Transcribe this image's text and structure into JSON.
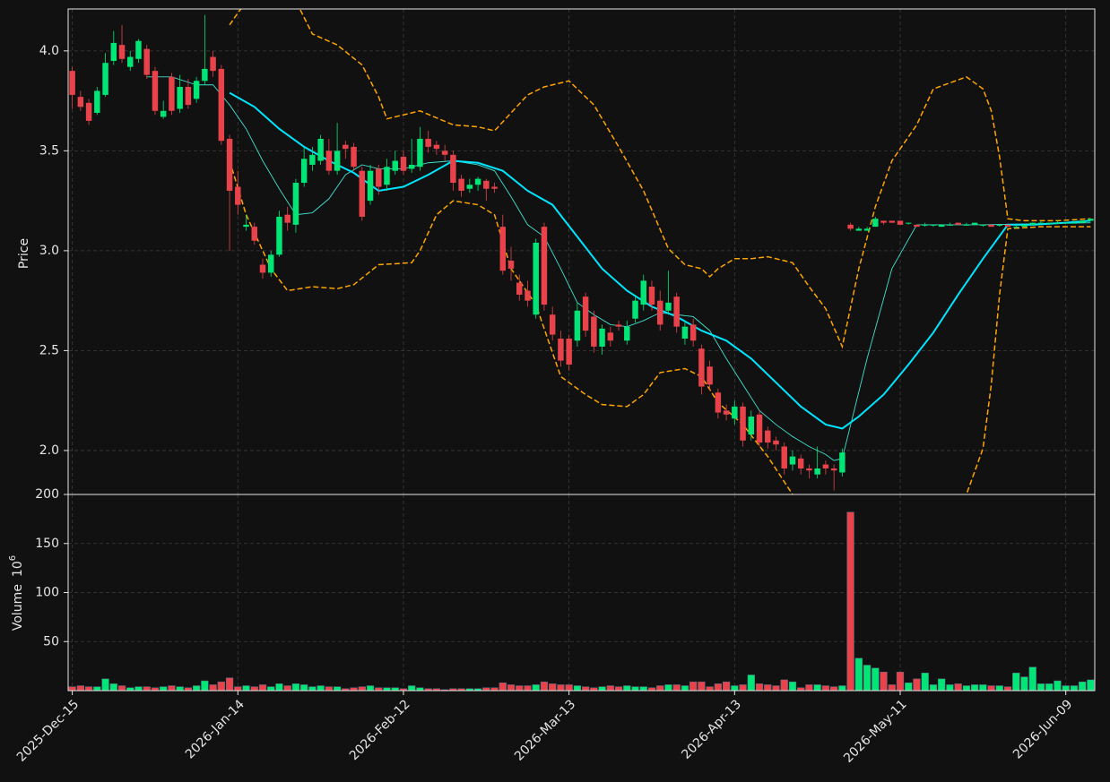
{
  "chart_data": [
    {
      "type": "candlestick",
      "ylabel": "Price",
      "up_color": "#00e676",
      "down_color": "#e8434a",
      "grid": true,
      "xlim": [
        -0.5,
        123.5
      ],
      "ylim": [
        1.78,
        4.21
      ],
      "yticks": [
        {
          "value": 2,
          "label": "2.0"
        },
        2.5,
        {
          "value": 3,
          "label": "3.0"
        },
        3.5,
        {
          "value": 4,
          "label": "4.0"
        }
      ],
      "open": [
        3.9,
        3.77,
        3.74,
        3.69,
        3.78,
        3.95,
        4.03,
        3.92,
        3.96,
        4.01,
        3.9,
        3.67,
        3.87,
        3.71,
        3.82,
        3.76,
        3.85,
        3.97,
        3.91,
        3.56,
        3.32,
        3.12,
        3.12,
        2.93,
        2.89,
        2.98,
        3.18,
        3.13,
        3.34,
        3.43,
        3.45,
        3.5,
        3.4,
        3.53,
        3.52,
        3.4,
        3.25,
        3.41,
        3.33,
        3.4,
        3.47,
        3.41,
        3.42,
        3.56,
        3.53,
        3.5,
        3.48,
        3.36,
        3.31,
        3.33,
        3.35,
        3.32,
        3.12,
        2.95,
        2.84,
        2.8,
        2.68,
        3.12,
        2.68,
        2.56,
        2.56,
        2.55,
        2.77,
        2.67,
        2.52,
        2.59,
        2.63,
        2.55,
        2.66,
        2.73,
        2.82,
        2.75,
        2.7,
        2.77,
        2.56,
        2.63,
        2.51,
        2.42,
        2.29,
        2.2,
        2.16,
        2.22,
        2.08,
        2.18,
        2.1,
        2.05,
        2.02,
        1.93,
        1.96,
        1.91,
        1.88,
        1.93,
        1.91,
        1.89,
        3.13,
        3.1,
        3.1,
        3.12,
        3.15,
        3.15,
        3.15,
        3.14,
        3.13,
        3.13,
        3.13,
        3.12,
        3.13,
        3.14,
        3.13,
        3.13,
        3.13,
        3.13,
        3.13,
        3.13,
        3.12,
        3.12,
        3.13,
        3.14,
        3.14,
        3.14,
        3.14,
        3.14,
        3.14,
        3.15
      ],
      "high": [
        3.92,
        3.8,
        3.76,
        3.82,
        3.99,
        4.1,
        4.13,
        4.0,
        4.06,
        4.03,
        3.92,
        3.75,
        3.89,
        3.88,
        3.86,
        3.87,
        4.18,
        4.0,
        3.93,
        3.58,
        3.4,
        3.18,
        3.14,
        2.96,
        3.0,
        3.2,
        3.22,
        3.36,
        3.52,
        3.52,
        3.58,
        3.56,
        3.64,
        3.55,
        3.54,
        3.42,
        3.43,
        3.43,
        3.46,
        3.5,
        3.5,
        3.56,
        3.62,
        3.6,
        3.55,
        3.53,
        3.5,
        3.38,
        3.36,
        3.37,
        3.36,
        3.34,
        3.18,
        3.02,
        2.88,
        2.85,
        3.06,
        3.14,
        2.72,
        2.6,
        2.58,
        2.74,
        2.79,
        2.7,
        2.63,
        2.62,
        2.65,
        2.65,
        2.78,
        2.88,
        2.85,
        2.8,
        2.9,
        2.79,
        2.65,
        2.66,
        2.53,
        2.45,
        2.31,
        2.23,
        2.25,
        2.24,
        2.2,
        2.2,
        2.12,
        2.07,
        2.04,
        2.0,
        1.98,
        1.93,
        2.02,
        1.95,
        1.93,
        2.01,
        3.14,
        3.12,
        3.12,
        3.17,
        3.15,
        3.15,
        3.15,
        3.14,
        3.13,
        3.14,
        3.13,
        3.13,
        3.14,
        3.14,
        3.14,
        3.14,
        3.13,
        3.13,
        3.13,
        3.13,
        3.13,
        3.13,
        3.14,
        3.15,
        3.14,
        3.15,
        3.14,
        3.15,
        3.15,
        3.16
      ],
      "low": [
        3.71,
        3.7,
        3.63,
        3.68,
        3.77,
        3.93,
        3.94,
        3.9,
        3.94,
        3.86,
        3.68,
        3.66,
        3.68,
        3.69,
        3.71,
        3.74,
        3.83,
        3.87,
        3.53,
        3.0,
        3.18,
        3.1,
        3.03,
        2.86,
        2.87,
        2.97,
        3.1,
        3.09,
        3.32,
        3.4,
        3.43,
        3.38,
        3.38,
        3.46,
        3.4,
        3.15,
        3.23,
        3.28,
        3.3,
        3.38,
        3.38,
        3.39,
        3.4,
        3.49,
        3.48,
        3.45,
        3.3,
        3.27,
        3.29,
        3.3,
        3.25,
        3.29,
        2.88,
        2.85,
        2.75,
        2.72,
        2.66,
        2.7,
        2.55,
        2.42,
        2.4,
        2.52,
        2.57,
        2.49,
        2.48,
        2.52,
        2.6,
        2.53,
        2.64,
        2.7,
        2.7,
        2.6,
        2.68,
        2.59,
        2.53,
        2.52,
        2.28,
        2.3,
        2.16,
        2.15,
        2.13,
        2.02,
        2.05,
        2.02,
        2.01,
        2.0,
        1.88,
        1.9,
        1.88,
        1.86,
        1.86,
        1.88,
        1.8,
        1.87,
        3.1,
        3.1,
        3.1,
        3.12,
        3.13,
        3.14,
        3.13,
        3.13,
        3.12,
        3.12,
        3.12,
        3.12,
        3.13,
        3.13,
        3.13,
        3.13,
        3.12,
        3.12,
        3.12,
        3.12,
        3.11,
        3.12,
        3.13,
        3.14,
        3.13,
        3.14,
        3.14,
        3.14,
        3.14,
        3.15
      ],
      "close": [
        3.78,
        3.72,
        3.65,
        3.8,
        3.94,
        4.04,
        3.96,
        3.97,
        4.05,
        3.88,
        3.7,
        3.7,
        3.7,
        3.82,
        3.73,
        3.85,
        3.91,
        3.9,
        3.55,
        3.3,
        3.23,
        3.13,
        3.05,
        2.89,
        2.98,
        3.17,
        3.14,
        3.34,
        3.46,
        3.48,
        3.56,
        3.4,
        3.5,
        3.51,
        3.42,
        3.17,
        3.4,
        3.32,
        3.42,
        3.45,
        3.4,
        3.43,
        3.56,
        3.52,
        3.51,
        3.48,
        3.34,
        3.3,
        3.33,
        3.36,
        3.31,
        3.31,
        2.9,
        2.91,
        2.78,
        2.75,
        3.04,
        2.73,
        2.58,
        2.45,
        2.43,
        2.7,
        2.6,
        2.52,
        2.61,
        2.55,
        2.62,
        2.62,
        2.75,
        2.85,
        2.73,
        2.63,
        2.74,
        2.62,
        2.62,
        2.55,
        2.32,
        2.33,
        2.19,
        2.18,
        2.22,
        2.05,
        2.17,
        2.04,
        2.04,
        2.03,
        1.91,
        1.97,
        1.91,
        1.9,
        1.91,
        1.91,
        1.9,
        1.99,
        3.11,
        3.11,
        3.11,
        3.16,
        3.14,
        3.14,
        3.13,
        3.14,
        3.12,
        3.13,
        3.13,
        3.13,
        3.13,
        3.13,
        3.13,
        3.14,
        3.13,
        3.12,
        3.13,
        3.12,
        3.12,
        3.13,
        3.14,
        3.14,
        3.14,
        3.14,
        3.14,
        3.14,
        3.15,
        3.16
      ],
      "overlays": [
        {
          "color": "#ffa500",
          "linestyle": "dashed",
          "x": [
            19,
            20,
            22,
            25,
            27,
            29,
            32,
            35,
            37,
            38,
            42,
            46,
            49,
            51,
            53,
            55,
            57,
            60,
            63,
            66,
            69,
            72,
            74,
            76,
            77,
            78,
            80,
            82,
            84,
            87,
            89,
            91,
            93,
            95,
            97,
            99,
            102,
            104,
            108,
            110,
            111,
            112,
            113,
            115,
            119,
            123
          ],
          "values": [
            4.13,
            4.19,
            4.3,
            4.35,
            4.25,
            4.085,
            4.03,
            3.93,
            3.77,
            3.66,
            3.7,
            3.63,
            3.62,
            3.6,
            3.69,
            3.78,
            3.82,
            3.85,
            3.73,
            3.52,
            3.3,
            3.01,
            2.93,
            2.91,
            2.87,
            2.91,
            2.96,
            2.96,
            2.97,
            2.94,
            2.82,
            2.71,
            2.52,
            2.91,
            3.22,
            3.45,
            3.63,
            3.81,
            3.87,
            3.81,
            3.7,
            3.47,
            3.16,
            3.15,
            3.15,
            3.16
          ]
        },
        {
          "color": "#ffa500",
          "linestyle": "dashed",
          "x": [
            19,
            21,
            24,
            26,
            29,
            32,
            34,
            37,
            41,
            42,
            44,
            46,
            49,
            51,
            53,
            56,
            59,
            62,
            64,
            67,
            69,
            71,
            74,
            76,
            78,
            81,
            84,
            87,
            89,
            91,
            93,
            96,
            100,
            104,
            107,
            108,
            110,
            111,
            112,
            113,
            117,
            123
          ],
          "values": [
            3.45,
            3.18,
            2.91,
            2.8,
            2.82,
            2.81,
            2.83,
            2.93,
            2.94,
            3.0,
            3.18,
            3.25,
            3.23,
            3.18,
            2.91,
            2.73,
            2.37,
            2.28,
            2.23,
            2.22,
            2.28,
            2.39,
            2.41,
            2.37,
            2.24,
            2.13,
            1.97,
            1.78,
            1.6,
            1.6,
            1.7,
            1.33,
            1.21,
            1.37,
            1.69,
            1.78,
            2.01,
            2.33,
            2.78,
            3.11,
            3.12,
            3.12
          ]
        },
        {
          "color": "#40e0d0",
          "linestyle": "thin",
          "x": [
            9,
            12,
            15,
            17,
            19,
            21,
            23,
            25,
            27,
            29,
            31,
            33,
            35,
            37,
            40,
            43,
            46,
            49,
            51,
            53,
            55,
            57,
            59,
            61,
            63,
            65,
            67,
            69,
            71,
            73,
            75,
            77,
            79,
            81,
            83,
            85,
            87,
            89,
            91,
            92,
            93,
            96,
            99,
            102,
            110,
            123
          ],
          "values": [
            3.87,
            3.87,
            3.83,
            3.83,
            3.73,
            3.61,
            3.45,
            3.31,
            3.18,
            3.19,
            3.26,
            3.38,
            3.43,
            3.41,
            3.41,
            3.44,
            3.45,
            3.43,
            3.4,
            3.27,
            3.13,
            3.07,
            2.91,
            2.74,
            2.68,
            2.63,
            2.62,
            2.65,
            2.69,
            2.68,
            2.67,
            2.6,
            2.46,
            2.33,
            2.2,
            2.13,
            2.07,
            2.02,
            1.98,
            1.95,
            1.96,
            2.46,
            2.91,
            3.13,
            3.13,
            3.14
          ]
        },
        {
          "color": "#00e5ff",
          "linestyle": "thick",
          "x": [
            19,
            22,
            25,
            28,
            31,
            34,
            37,
            40,
            43,
            46,
            49,
            52,
            55,
            58,
            61,
            64,
            67,
            70,
            73,
            76,
            79,
            82,
            85,
            88,
            91,
            93,
            95,
            98,
            101,
            104,
            107,
            110,
            113,
            116,
            120,
            123
          ],
          "values": [
            3.79,
            3.72,
            3.61,
            3.52,
            3.45,
            3.39,
            3.3,
            3.32,
            3.38,
            3.45,
            3.44,
            3.4,
            3.3,
            3.23,
            3.07,
            2.91,
            2.8,
            2.72,
            2.67,
            2.6,
            2.55,
            2.46,
            2.34,
            2.22,
            2.13,
            2.11,
            2.17,
            2.28,
            2.43,
            2.59,
            2.78,
            2.96,
            3.13,
            3.13,
            3.14,
            3.15
          ]
        }
      ]
    },
    {
      "type": "bar",
      "ylabel": "Volume",
      "scale_base": "10",
      "scale_exponent": "6",
      "grid": true,
      "xlim": [
        -0.5,
        123.5
      ],
      "ylim": [
        0,
        200
      ],
      "yticks": [
        50,
        100,
        150,
        200
      ],
      "xticks": [
        {
          "value": 0,
          "label": "2025-Dec-15"
        },
        {
          "value": 20,
          "label": "2026-Jan-14"
        },
        {
          "value": 40,
          "label": "2026-Feb-12"
        },
        {
          "value": 60,
          "label": "2026-Mar-13"
        },
        {
          "value": 80,
          "label": "2026-Apr-13"
        },
        {
          "value": 100,
          "label": "2026-May-11"
        },
        {
          "value": 120,
          "label": "2026-Jun-09"
        }
      ],
      "values": [
        4,
        5,
        4,
        4,
        12,
        7,
        5,
        3,
        4,
        4,
        3,
        4,
        5,
        4,
        3,
        5,
        10,
        6,
        9,
        13,
        4,
        5,
        4,
        6,
        4,
        7,
        5,
        7,
        6,
        4,
        5,
        4,
        4,
        2,
        3,
        4,
        5,
        3,
        3,
        3,
        2,
        5,
        3,
        2,
        2,
        1,
        2,
        2,
        2,
        2,
        3,
        3,
        8,
        6,
        5,
        5,
        6,
        9,
        7,
        6,
        6,
        5,
        4,
        3,
        4,
        5,
        4,
        5,
        4,
        4,
        3,
        5,
        6,
        6,
        5,
        9,
        9,
        4,
        7,
        9,
        5,
        6,
        16,
        7,
        6,
        5,
        11,
        9,
        3,
        6,
        6,
        5,
        4,
        5,
        182,
        33,
        26,
        23,
        19,
        6,
        19,
        8,
        12,
        18,
        6,
        12,
        6,
        7,
        5,
        6,
        6,
        5,
        5,
        4,
        18,
        14,
        24,
        7,
        7,
        10,
        5,
        5,
        9,
        11
      ]
    }
  ]
}
